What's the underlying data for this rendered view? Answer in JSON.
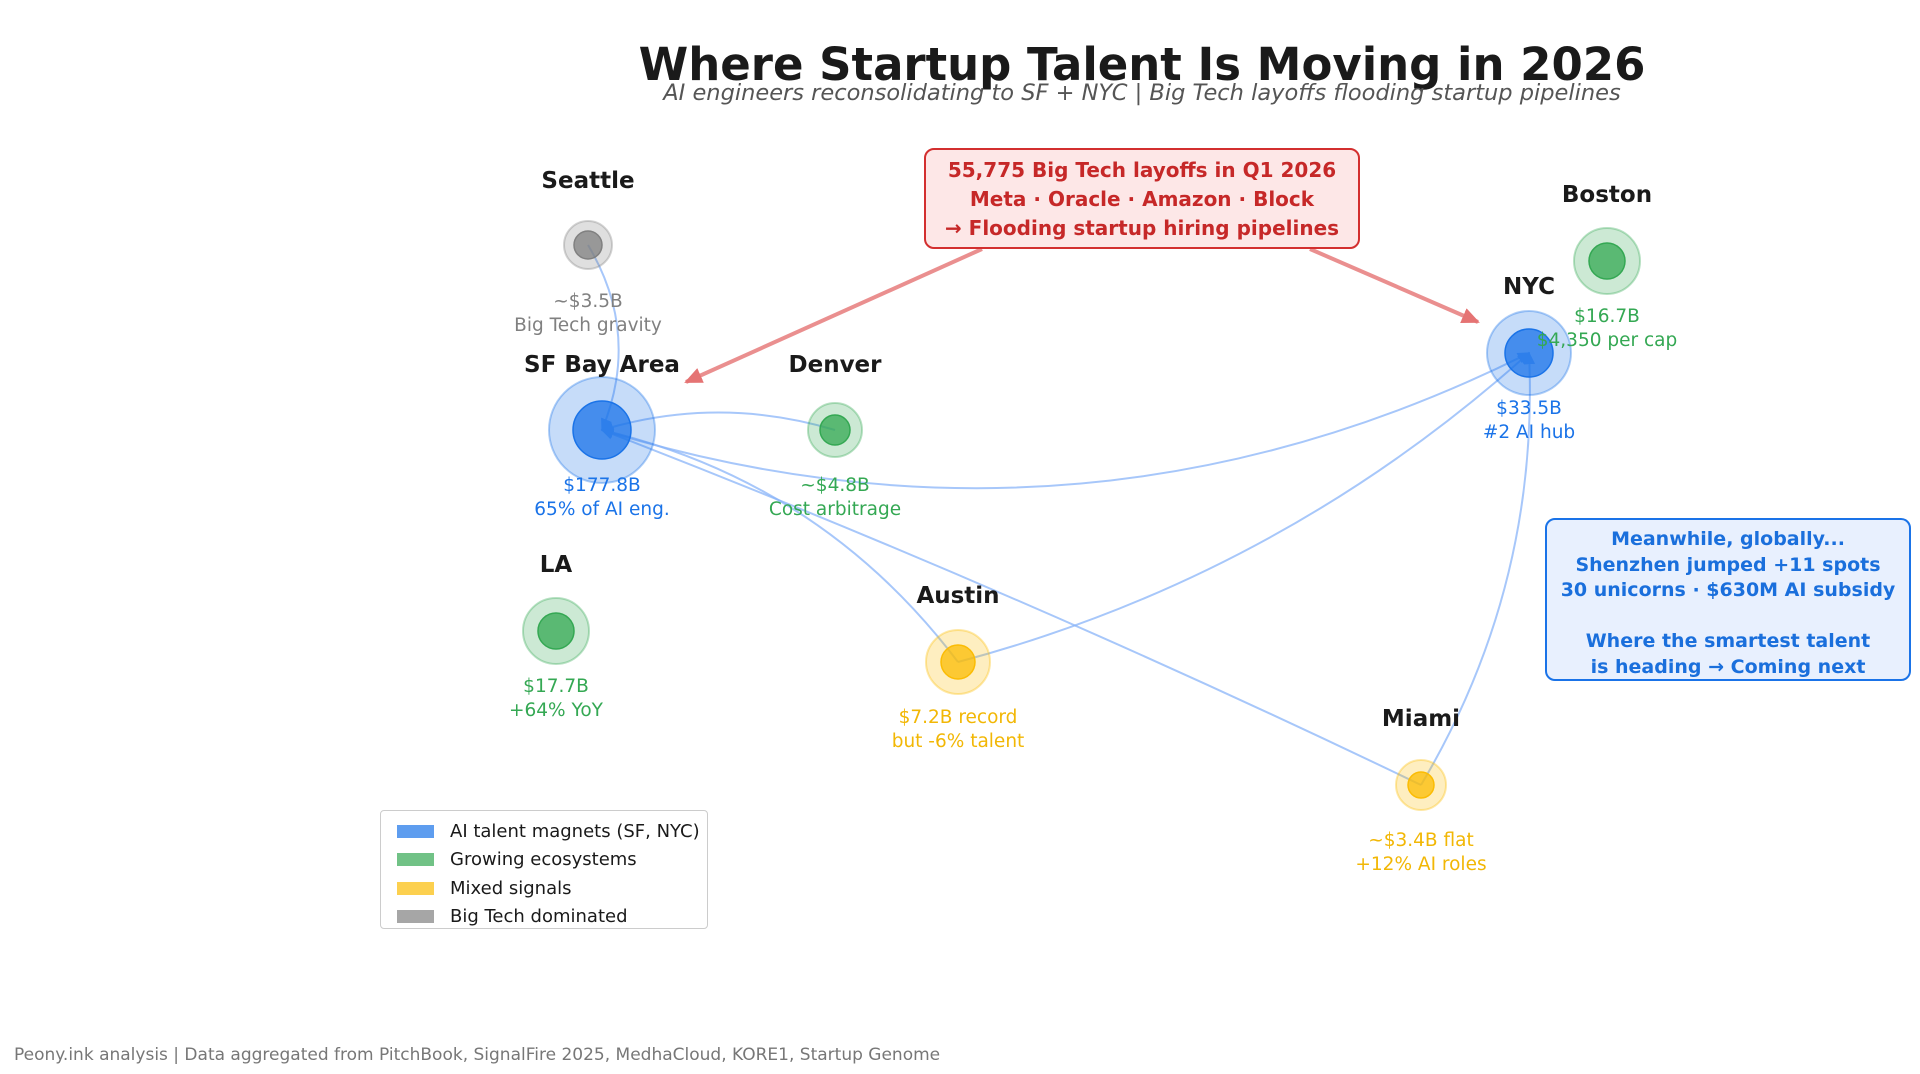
{
  "title": "Where Startup Talent Is Moving in 2026",
  "subtitle": "AI engineers reconsolidating to SF + NYC  |  Big Tech layoffs flooding startup pipelines",
  "colors": {
    "ai_magnet": "#1a73e8",
    "growing": "#34a853",
    "mixed": "#fbbc04",
    "big_tech": "#808080",
    "flow_line": "#8ab4f8",
    "layoff_arrow": "#e57373"
  },
  "chart_data": {
    "type": "bubble-network",
    "title": "Where Startup Talent Is Moving in 2026",
    "subtitle": "AI engineers reconsolidating to SF + NYC  |  Big Tech layoffs flooding startup pipelines",
    "cities": [
      {
        "id": "seattle",
        "name": "Seattle",
        "category": "big_tech",
        "funding_billion": 3.5,
        "ann": [
          "~$3.5B",
          "Big Tech gravity"
        ]
      },
      {
        "id": "sf",
        "name": "SF Bay Area",
        "category": "ai_magnet",
        "funding_billion": 177.8,
        "ann": [
          "$177.8B",
          "65% of AI eng."
        ]
      },
      {
        "id": "denver",
        "name": "Denver",
        "category": "growing",
        "funding_billion": 4.8,
        "ann": [
          "~$4.8B",
          "Cost arbitrage"
        ]
      },
      {
        "id": "la",
        "name": "LA",
        "category": "growing",
        "funding_billion": 17.7,
        "ann": [
          "$17.7B",
          "+64% YoY"
        ]
      },
      {
        "id": "austin",
        "name": "Austin",
        "category": "mixed",
        "funding_billion": 7.2,
        "ann": [
          "$7.2B record",
          "but -6% talent"
        ]
      },
      {
        "id": "nyc",
        "name": "NYC",
        "category": "ai_magnet",
        "funding_billion": 33.5,
        "ann": [
          "$33.5B",
          "#2 AI hub"
        ]
      },
      {
        "id": "boston",
        "name": "Boston",
        "category": "growing",
        "funding_billion": 16.7,
        "ann": [
          "$16.7B",
          "$4,350 per cap"
        ]
      },
      {
        "id": "miami",
        "name": "Miami",
        "category": "mixed",
        "funding_billion": 3.4,
        "ann": [
          "~$3.4B flat",
          "+12% AI roles"
        ]
      }
    ],
    "flows": [
      {
        "from": "seattle",
        "to": "sf"
      },
      {
        "from": "austin",
        "to": "sf"
      },
      {
        "from": "miami",
        "to": "sf"
      },
      {
        "from": "denver",
        "to": "sf"
      },
      {
        "from": "sf",
        "to": "nyc"
      },
      {
        "from": "austin",
        "to": "nyc"
      },
      {
        "from": "miami",
        "to": "nyc"
      }
    ],
    "layoff_targets": [
      "sf",
      "nyc"
    ],
    "legend": [
      {
        "label": "AI talent magnets (SF, NYC)",
        "category": "ai_magnet"
      },
      {
        "label": "Growing ecosystems",
        "category": "growing"
      },
      {
        "label": "Mixed signals",
        "category": "mixed"
      },
      {
        "label": "Big Tech dominated",
        "category": "big_tech"
      }
    ],
    "legend_placement": "bottom-left"
  },
  "callouts": {
    "layoffs": [
      "55,775 Big Tech layoffs in Q1 2026",
      "Meta  ·  Oracle  ·  Amazon  ·  Block",
      "→ Flooding startup hiring pipelines"
    ],
    "global": [
      "Meanwhile, globally...",
      "Shenzhen jumped +11 spots",
      "30 unicorns  ·  $630M AI subsidy",
      "",
      "Where the smartest talent",
      "is heading → Coming next"
    ]
  },
  "footer": "Peony.ink analysis  |  Data aggregated from PitchBook, SignalFire 2025, MedhaCloud, KORE1, Startup Genome"
}
